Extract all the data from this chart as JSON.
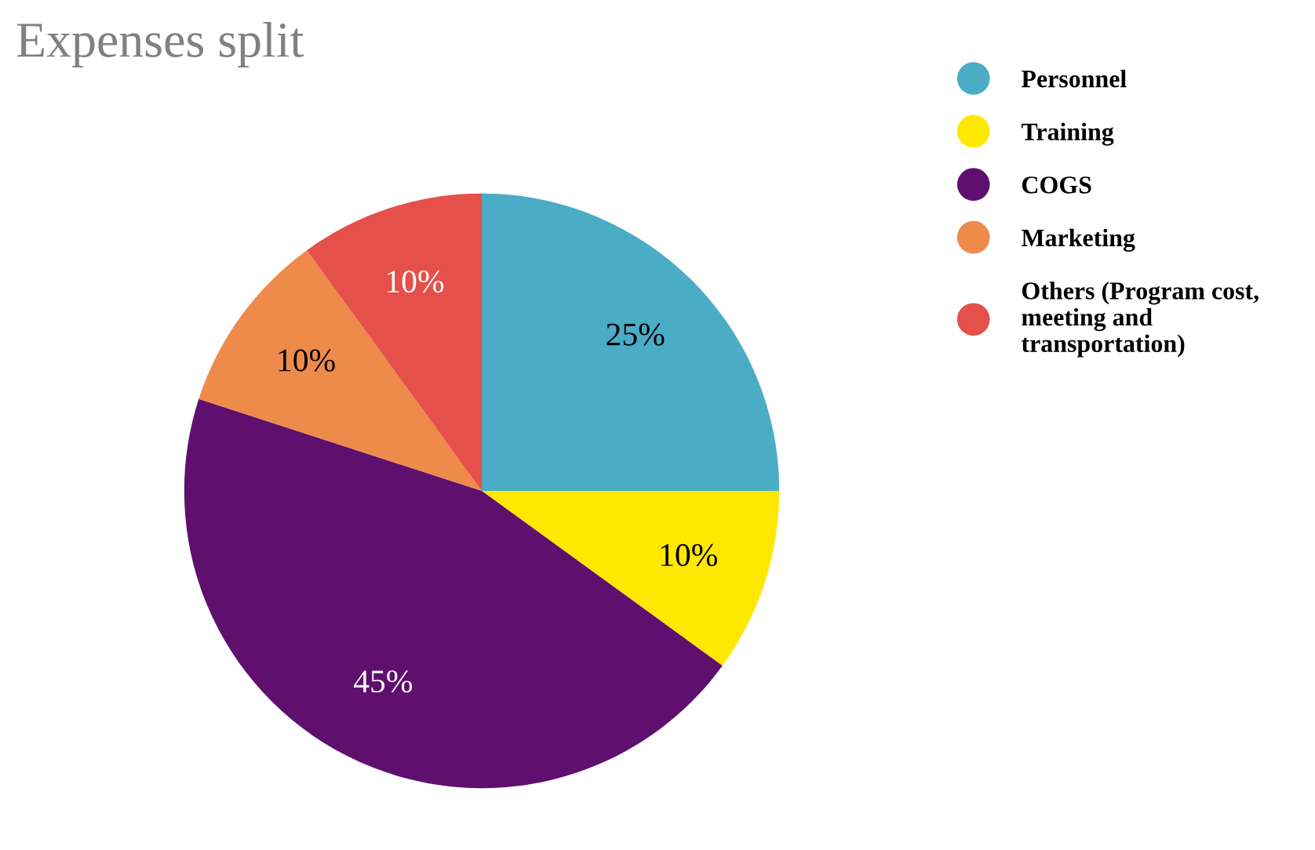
{
  "chart_data": {
    "type": "pie",
    "title": "Expenses split",
    "categories": [
      "Personnel",
      "Training",
      "COGS",
      "Marketing",
      "Others (Program cost,\nmeeting and\ntransportation)"
    ],
    "values": [
      25,
      10,
      45,
      10,
      10
    ],
    "colors": [
      "#4bacc6",
      "#ffe800",
      "#5f0f6e",
      "#ee8a4a",
      "#e5504a"
    ],
    "value_labels": [
      "25%",
      "10%",
      "45%",
      "10%",
      "10%"
    ],
    "legend": "top right"
  }
}
